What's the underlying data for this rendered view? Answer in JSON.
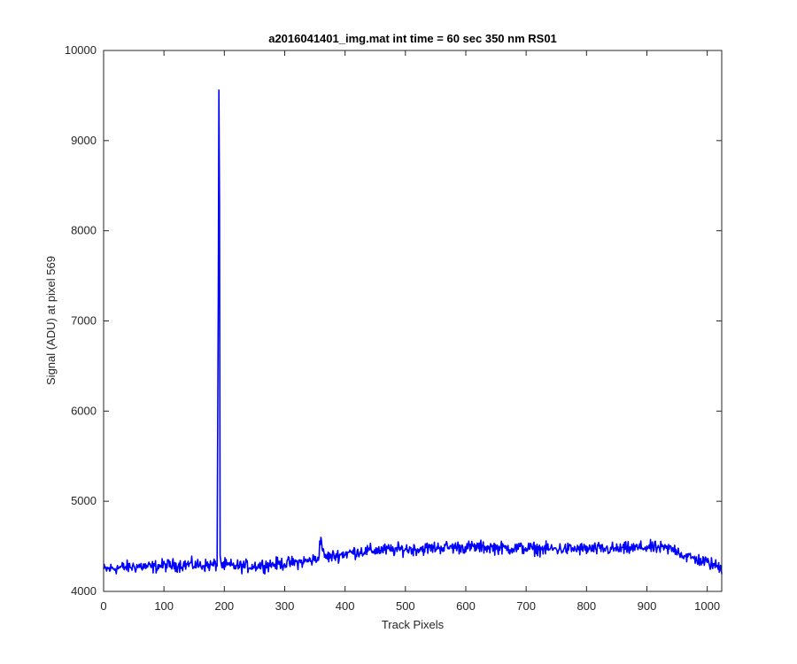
{
  "chart_data": {
    "type": "line",
    "title": "a2016041401_img.mat int time = 60 sec  350 nm RS01",
    "xlabel": "Track Pixels",
    "ylabel": "Signal (ADU) at pixel 569",
    "xlim": [
      0,
      1024
    ],
    "ylim": [
      4000,
      10000
    ],
    "x_ticks": [
      0,
      100,
      200,
      300,
      400,
      500,
      600,
      700,
      800,
      900,
      1000
    ],
    "y_ticks": [
      4000,
      5000,
      6000,
      7000,
      8000,
      9000,
      10000
    ],
    "grid": false,
    "legend": "none",
    "line_color": "#0000ff",
    "series": [
      {
        "x": [
          0,
          20,
          40,
          60,
          80,
          100,
          120,
          140,
          160,
          180,
          188,
          190,
          191,
          192,
          193,
          195,
          200,
          220,
          240,
          260,
          280,
          300,
          320,
          340,
          355,
          360,
          365,
          380,
          400,
          420,
          440,
          460,
          480,
          500,
          520,
          540,
          560,
          580,
          600,
          620,
          640,
          660,
          680,
          700,
          720,
          740,
          760,
          780,
          800,
          820,
          840,
          860,
          880,
          900,
          920,
          940,
          950,
          960,
          980,
          1000,
          1024
        ],
        "y": [
          4240,
          4260,
          4270,
          4280,
          4270,
          4290,
          4290,
          4300,
          4290,
          4290,
          4300,
          7300,
          9560,
          8300,
          4400,
          4290,
          4290,
          4280,
          4280,
          4290,
          4300,
          4310,
          4320,
          4340,
          4360,
          4600,
          4380,
          4390,
          4420,
          4440,
          4450,
          4460,
          4460,
          4470,
          4470,
          4480,
          4490,
          4490,
          4490,
          4490,
          4490,
          4480,
          4480,
          4480,
          4470,
          4470,
          4470,
          4470,
          4470,
          4470,
          4470,
          4470,
          4480,
          4490,
          4480,
          4470,
          4460,
          4400,
          4360,
          4320,
          4260
        ]
      }
    ]
  }
}
